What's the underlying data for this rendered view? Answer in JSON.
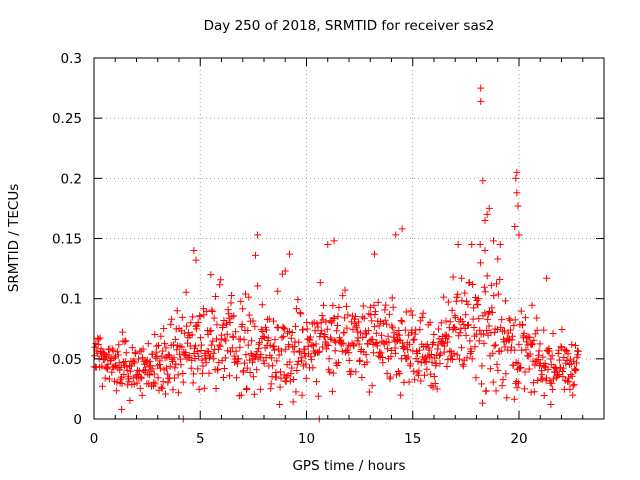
{
  "chart_data": {
    "type": "scatter",
    "title": "Day 250 of 2018, SRMTID for receiver sas2",
    "xlabel": "GPS time / hours",
    "ylabel": "SRMTID / TECUs",
    "xlim": [
      0,
      24
    ],
    "ylim": [
      0,
      0.3
    ],
    "grid": true,
    "marker": "+",
    "x_ticks": [
      0,
      5,
      10,
      15,
      20
    ],
    "x_tick_labels": [
      "0",
      "5",
      "10",
      "15",
      "20"
    ],
    "y_ticks": [
      0,
      0.05,
      0.1,
      0.15,
      0.2,
      0.25,
      0.3
    ],
    "y_tick_labels": [
      "0",
      "0.05",
      "0.1",
      "0.15",
      "0.2",
      "0.25",
      "0.3"
    ],
    "colors": {
      "points": "#ff0000",
      "grid": "#a0a0a0",
      "axes": "#000000"
    },
    "series": [
      {
        "name": "SRMTID",
        "approximate_trend": {
          "x": [
            0,
            1,
            2,
            3,
            4,
            5,
            6,
            7,
            8,
            9,
            10,
            11,
            12,
            13,
            14,
            15,
            16,
            17,
            18,
            19,
            20,
            21,
            22,
            22.8
          ],
          "median": [
            0.052,
            0.045,
            0.042,
            0.048,
            0.055,
            0.062,
            0.065,
            0.06,
            0.055,
            0.058,
            0.062,
            0.068,
            0.07,
            0.058,
            0.06,
            0.055,
            0.05,
            0.075,
            0.082,
            0.068,
            0.058,
            0.045,
            0.042,
            0.045
          ],
          "spread": [
            0.012,
            0.012,
            0.012,
            0.015,
            0.018,
            0.02,
            0.02,
            0.02,
            0.018,
            0.02,
            0.02,
            0.022,
            0.02,
            0.018,
            0.018,
            0.015,
            0.015,
            0.02,
            0.028,
            0.03,
            0.02,
            0.015,
            0.012,
            0.012
          ]
        },
        "points": [
          {
            "x": 18.2,
            "y": 0.275
          },
          {
            "x": 18.2,
            "y": 0.264
          },
          {
            "x": 19.9,
            "y": 0.205
          },
          {
            "x": 19.85,
            "y": 0.2
          },
          {
            "x": 18.3,
            "y": 0.198
          },
          {
            "x": 19.9,
            "y": 0.188
          },
          {
            "x": 19.95,
            "y": 0.177
          },
          {
            "x": 18.6,
            "y": 0.175
          },
          {
            "x": 18.5,
            "y": 0.17
          },
          {
            "x": 18.4,
            "y": 0.165
          },
          {
            "x": 19.8,
            "y": 0.16
          },
          {
            "x": 14.5,
            "y": 0.158
          },
          {
            "x": 7.7,
            "y": 0.153
          },
          {
            "x": 14.2,
            "y": 0.153
          },
          {
            "x": 20.0,
            "y": 0.153
          },
          {
            "x": 11.3,
            "y": 0.148
          },
          {
            "x": 18.8,
            "y": 0.148
          },
          {
            "x": 4.7,
            "y": 0.14
          },
          {
            "x": 9.2,
            "y": 0.137
          },
          {
            "x": 13.2,
            "y": 0.137
          },
          {
            "x": 7.6,
            "y": 0.136
          },
          {
            "x": 4.8,
            "y": 0.132
          },
          {
            "x": 18.4,
            "y": 0.14
          },
          {
            "x": 19.0,
            "y": 0.133
          },
          {
            "x": 16.9,
            "y": 0.118
          },
          {
            "x": 17.3,
            "y": 0.117
          },
          {
            "x": 21.3,
            "y": 0.117
          },
          {
            "x": 9.0,
            "y": 0.123
          },
          {
            "x": 5.5,
            "y": 0.12
          },
          {
            "x": 4.2,
            "y": 0.0
          },
          {
            "x": 10.6,
            "y": 0.0
          },
          {
            "x": 1.3,
            "y": 0.008
          },
          {
            "x": 21.5,
            "y": 0.012
          }
        ]
      }
    ]
  }
}
